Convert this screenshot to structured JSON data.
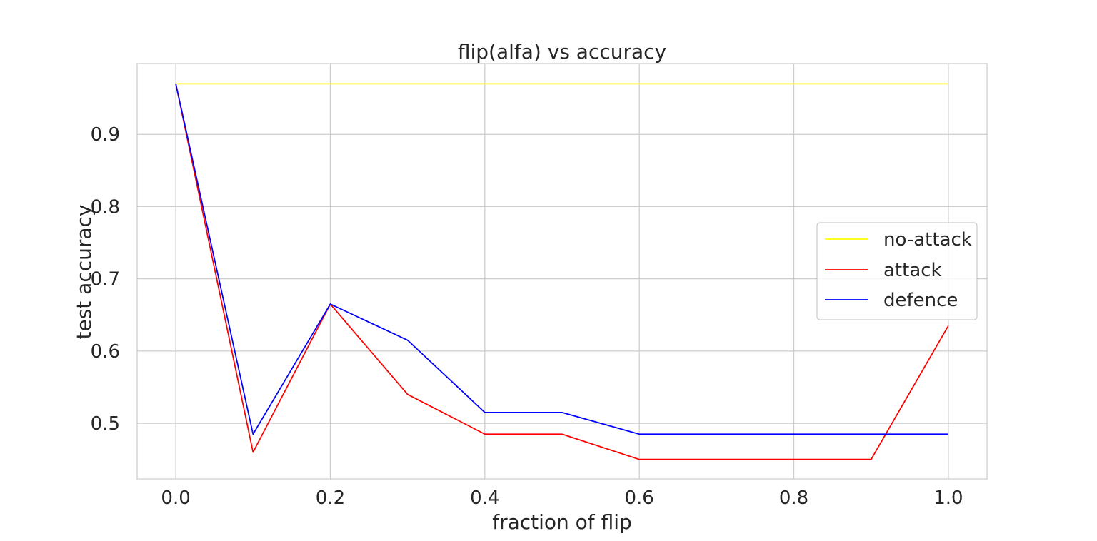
{
  "chart_data": {
    "type": "line",
    "title": "flip(alfa) vs accuracy",
    "xlabel": "fraction of flip",
    "ylabel": "test accuracy",
    "x": [
      0.0,
      0.1,
      0.2,
      0.3,
      0.4,
      0.5,
      0.6,
      0.7,
      0.8,
      0.9,
      1.0
    ],
    "xlim": [
      -0.05,
      1.05
    ],
    "ylim": [
      0.423,
      0.998
    ],
    "xticks": [
      0.0,
      0.2,
      0.4,
      0.6,
      0.8,
      1.0
    ],
    "xtick_labels": [
      "0.0",
      "0.2",
      "0.4",
      "0.6",
      "0.8",
      "1.0"
    ],
    "yticks": [
      0.5,
      0.6,
      0.7,
      0.8,
      0.9
    ],
    "ytick_labels": [
      "0.5",
      "0.6",
      "0.7",
      "0.8",
      "0.9"
    ],
    "grid": true,
    "legend_position": "center-right",
    "series": [
      {
        "name": "no-attack",
        "color": "#ffff00",
        "values": [
          0.97,
          0.97,
          0.97,
          0.97,
          0.97,
          0.97,
          0.97,
          0.97,
          0.97,
          0.97,
          0.97
        ]
      },
      {
        "name": "attack",
        "color": "#ff0000",
        "values": [
          0.97,
          0.46,
          0.665,
          0.54,
          0.485,
          0.485,
          0.45,
          0.45,
          0.45,
          0.45,
          0.635
        ]
      },
      {
        "name": "defence",
        "color": "#0000ff",
        "values": [
          0.97,
          0.485,
          0.665,
          0.615,
          0.515,
          0.515,
          0.485,
          0.485,
          0.485,
          0.485,
          0.485
        ]
      }
    ]
  }
}
